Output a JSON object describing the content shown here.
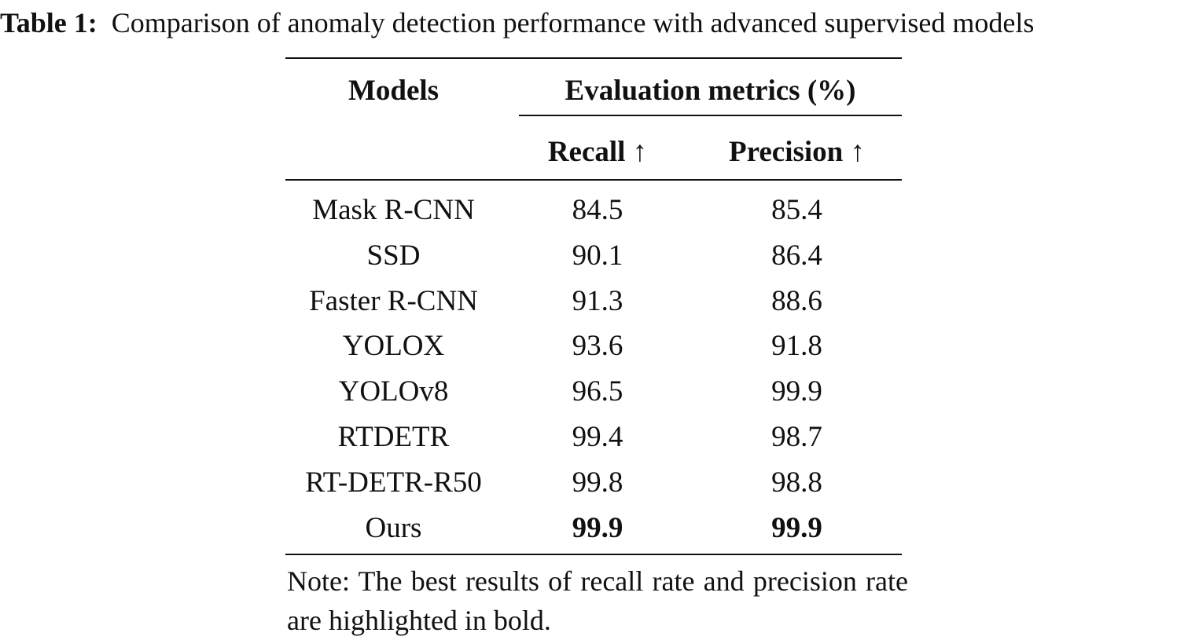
{
  "caption": {
    "label": "Table 1:",
    "text": "Comparison of anomaly detection performance with advanced supervised models"
  },
  "table": {
    "headers": {
      "models": "Models",
      "group": "Evaluation metrics (%)",
      "recall": "Recall ↑",
      "precision": "Precision ↑"
    },
    "rows": [
      {
        "model": "Mask R-CNN",
        "recall": "84.5",
        "precision": "85.4",
        "bold": false
      },
      {
        "model": "SSD",
        "recall": "90.1",
        "precision": "86.4",
        "bold": false
      },
      {
        "model": "Faster R-CNN",
        "recall": "91.3",
        "precision": "88.6",
        "bold": false
      },
      {
        "model": "YOLOX",
        "recall": "93.6",
        "precision": "91.8",
        "bold": false
      },
      {
        "model": "YOLOv8",
        "recall": "96.5",
        "precision": "99.9",
        "bold": false
      },
      {
        "model": "RTDETR",
        "recall": "99.4",
        "precision": "98.7",
        "bold": false
      },
      {
        "model": "RT-DETR-R50",
        "recall": "99.8",
        "precision": "98.8",
        "bold": false
      },
      {
        "model": "Ours",
        "recall": "99.9",
        "precision": "99.9",
        "bold": true
      }
    ]
  },
  "note": "Note: The best results of recall rate and precision rate are highlighted in bold."
}
